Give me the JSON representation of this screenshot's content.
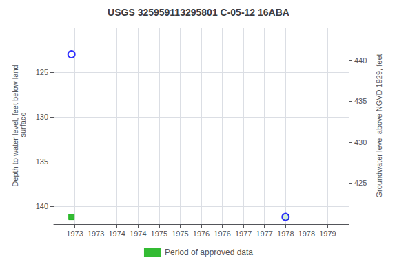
{
  "chart_data": {
    "type": "scatter",
    "title": "USGS 325959113295801 C-05-12 16ABA",
    "ylabel": "Depth to water level, feet below land\n surface",
    "y2label": "Groundwater level above NGVD 1929, feet",
    "xlim": [
      1972.5,
      1979.5
    ],
    "xticks": [
      1973.0,
      {
        "value": 1973.5,
        "label": "1973"
      },
      1974.0,
      {
        "value": 1974.5,
        "label": "1974"
      },
      1975.0,
      {
        "value": 1975.5,
        "label": "1975"
      },
      1976.0,
      {
        "value": 1976.5,
        "label": "1976"
      },
      1977.0,
      {
        "value": 1977.5,
        "label": "1977"
      },
      1978.0,
      {
        "value": 1978.5,
        "label": "1978"
      },
      1979.0
    ],
    "ylim": [
      142,
      120
    ],
    "yticks": [
      125,
      130,
      135,
      140
    ],
    "y2lim": [
      420,
      444
    ],
    "y2ticks": [
      440,
      435,
      430,
      425
    ],
    "grid": true,
    "legend": "bottom",
    "series": [
      {
        "type": "scatter",
        "marker": "open_circle",
        "color": "blue",
        "x": [
          1972.92,
          1978.0
        ],
        "values": [
          123.0,
          141.2
        ]
      },
      {
        "name": "Period of approved data",
        "type": "scatter",
        "marker": "square",
        "color": "#00aa00",
        "x": [
          1972.92,
          1978.0
        ],
        "values": [
          141.2,
          141.2
        ]
      }
    ]
  }
}
